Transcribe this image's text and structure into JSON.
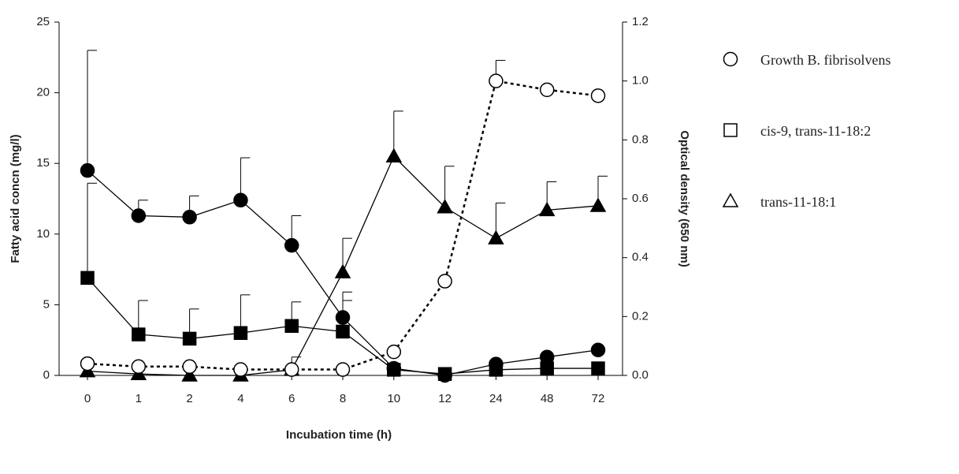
{
  "chart_data": {
    "type": "line",
    "x_label": "Incubation time (h)",
    "y_label": "Fatty acid concn (mg/l)",
    "y2_label": "Optical density (650 nm)",
    "categories": [
      "0",
      "1",
      "2",
      "4",
      "6",
      "8",
      "10",
      "12",
      "24",
      "48",
      "72"
    ],
    "ylim": [
      0,
      25
    ],
    "yticks": [
      0,
      5,
      10,
      15,
      20,
      25
    ],
    "y2lim": [
      0,
      1.2
    ],
    "y2ticks": [
      {
        "value": 0,
        "label": "0.0"
      },
      0.2,
      0.4,
      0.6,
      0.8,
      {
        "value": 1,
        "label": "1.0"
      },
      1.2
    ],
    "series": [
      {
        "color": "#000000",
        "marker": "circle",
        "filled": true,
        "dashed": false,
        "values": [
          14.5,
          11.3,
          11.2,
          12.4,
          9.2,
          4.1,
          0.5,
          0,
          0.8,
          1.3,
          1.8
        ],
        "errors": [
          8.5,
          1.1,
          1.5,
          3.0,
          2.1,
          1.8,
          null,
          null,
          null,
          null,
          null
        ]
      },
      {
        "name": "cis-9, trans-11-18:2",
        "color": "#000000",
        "marker": "square",
        "filled": true,
        "dashed": false,
        "values": [
          6.9,
          2.9,
          2.6,
          3.0,
          3.5,
          3.1,
          0.4,
          0.1,
          0.4,
          0.5,
          0.5
        ],
        "errors": [
          6.7,
          2.4,
          2.1,
          2.7,
          1.7,
          2.2,
          null,
          null,
          null,
          null,
          null
        ]
      },
      {
        "name": "trans-11-18:1",
        "color": "#000000",
        "marker": "triangle",
        "filled": true,
        "dashed": false,
        "values": [
          0.3,
          0.1,
          0,
          0,
          0.4,
          7.3,
          15.5,
          11.9,
          9.7,
          11.7,
          12.0
        ],
        "errors": [
          null,
          null,
          null,
          null,
          0.9,
          2.4,
          3.2,
          2.9,
          2.5,
          2.0,
          2.1
        ]
      },
      {
        "name": "Growth B. fibrisolvens",
        "color": "#000000",
        "marker": "circle",
        "filled": false,
        "dashed": true,
        "axis": "y2",
        "values": [
          0.04,
          0.03,
          0.03,
          0.02,
          0.02,
          0.02,
          0.08,
          0.32,
          1.0,
          0.97,
          0.95
        ],
        "errors": [
          null,
          null,
          null,
          null,
          null,
          null,
          null,
          null,
          0.07,
          null,
          null
        ]
      }
    ]
  }
}
